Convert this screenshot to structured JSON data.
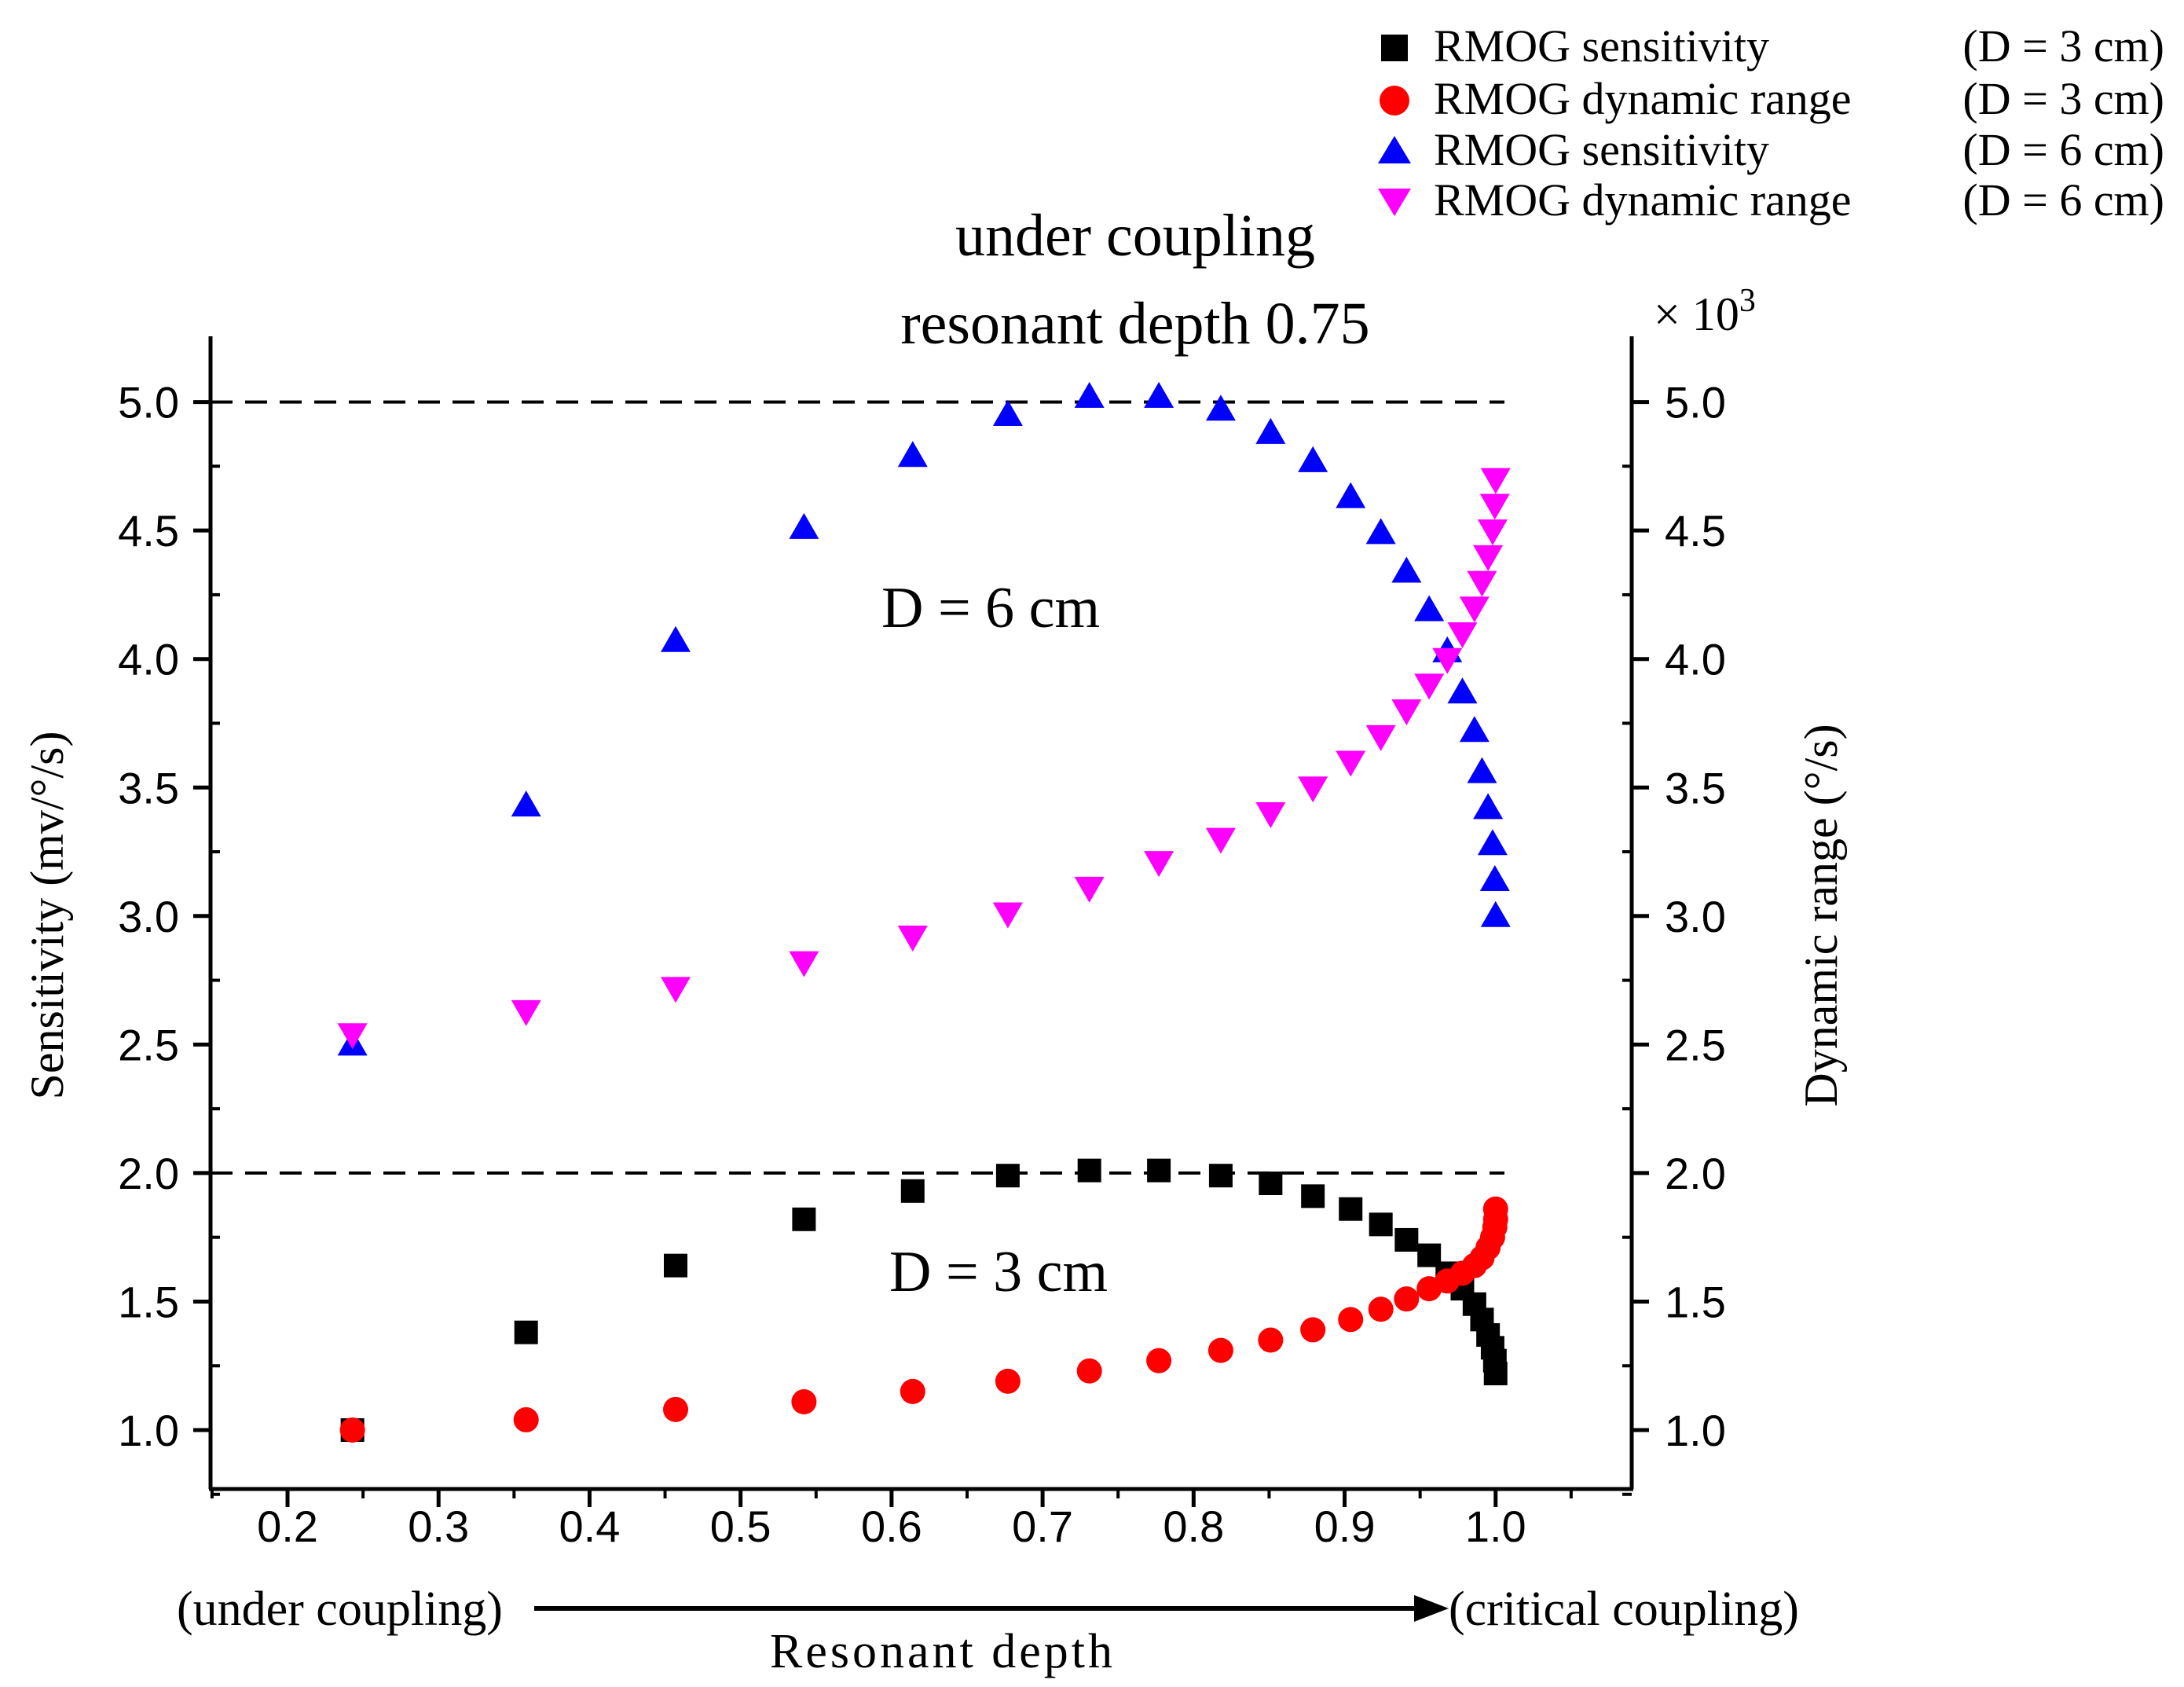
{
  "chart_data": {
    "type": "scatter",
    "title_lines": [
      "under coupling",
      "resonant depth 0.75"
    ],
    "xlabel": "Resonant depth",
    "xlabel_left": "(under coupling)",
    "xlabel_right": "(critical coupling)",
    "ylabel_left": "Sensitivity (mv/°/s)",
    "ylabel_right": "Dynamic range (°/s)",
    "right_multiplier_prefix": "× 10",
    "right_multiplier_exp": "3",
    "xlim": [
      0.15,
      1.1
    ],
    "ylim": [
      0.75,
      5.2
    ],
    "x_ticks": [
      "0.2",
      "0.3",
      "0.4",
      "0.5",
      "0.6",
      "0.7",
      "0.8",
      "0.9",
      "1.0"
    ],
    "y_ticks": [
      "1.0",
      "1.5",
      "2.0",
      "2.5",
      "3.0",
      "3.5",
      "4.0",
      "4.5",
      "5.0"
    ],
    "reference_lines": [
      5.0,
      2.0
    ],
    "annotations": [
      "D = 6 cm",
      "D = 3 cm"
    ],
    "legend": [
      {
        "label": "RMOG sensitivity",
        "cond": "(D = 3 cm)",
        "marker": "square",
        "color": "#000000"
      },
      {
        "label": "RMOG dynamic range",
        "cond": "(D = 3 cm)",
        "marker": "circle",
        "color": "#ff0000"
      },
      {
        "label": "RMOG sensitivity",
        "cond": "(D = 6 cm)",
        "marker": "triangle-up",
        "color": "#0000ff"
      },
      {
        "label": "RMOG dynamic range",
        "cond": "(D = 6 cm)",
        "marker": "triangle-down",
        "color": "#ff00ff"
      }
    ],
    "series": [
      {
        "name": "RMOG sensitivity (D = 3 cm)",
        "marker": "square",
        "color": "#000000",
        "points": [
          [
            0.243,
            1.0
          ],
          [
            0.358,
            1.38
          ],
          [
            0.457,
            1.64
          ],
          [
            0.542,
            1.82
          ],
          [
            0.614,
            1.93
          ],
          [
            0.677,
            1.99
          ],
          [
            0.731,
            2.01
          ],
          [
            0.777,
            2.01
          ],
          [
            0.818,
            1.99
          ],
          [
            0.851,
            1.96
          ],
          [
            0.879,
            1.91
          ],
          [
            0.904,
            1.86
          ],
          [
            0.924,
            1.8
          ],
          [
            0.941,
            1.74
          ],
          [
            0.956,
            1.68
          ],
          [
            0.968,
            1.61
          ],
          [
            0.978,
            1.55
          ],
          [
            0.986,
            1.49
          ],
          [
            0.991,
            1.43
          ],
          [
            0.995,
            1.37
          ],
          [
            0.998,
            1.32
          ],
          [
            0.9995,
            1.27
          ],
          [
            1.0,
            1.22
          ]
        ]
      },
      {
        "name": "RMOG dynamic range (D = 3 cm)",
        "marker": "circle",
        "color": "#ff0000",
        "points": [
          [
            0.243,
            1.0
          ],
          [
            0.358,
            1.04
          ],
          [
            0.457,
            1.08
          ],
          [
            0.542,
            1.11
          ],
          [
            0.614,
            1.15
          ],
          [
            0.677,
            1.19
          ],
          [
            0.731,
            1.23
          ],
          [
            0.777,
            1.27
          ],
          [
            0.818,
            1.31
          ],
          [
            0.851,
            1.35
          ],
          [
            0.879,
            1.39
          ],
          [
            0.904,
            1.43
          ],
          [
            0.924,
            1.47
          ],
          [
            0.941,
            1.51
          ],
          [
            0.956,
            1.55
          ],
          [
            0.968,
            1.58
          ],
          [
            0.978,
            1.61
          ],
          [
            0.986,
            1.64
          ],
          [
            0.991,
            1.67
          ],
          [
            0.995,
            1.71
          ],
          [
            0.998,
            1.75
          ],
          [
            0.9995,
            1.79
          ],
          [
            1.0,
            1.82
          ],
          [
            1.0,
            1.86
          ]
        ]
      },
      {
        "name": "RMOG sensitivity (D = 6 cm)",
        "marker": "triangle-up",
        "color": "#0000ff",
        "points": [
          [
            0.243,
            2.5
          ],
          [
            0.358,
            3.43
          ],
          [
            0.457,
            4.07
          ],
          [
            0.542,
            4.51
          ],
          [
            0.614,
            4.79
          ],
          [
            0.677,
            4.95
          ],
          [
            0.731,
            5.02
          ],
          [
            0.777,
            5.02
          ],
          [
            0.818,
            4.97
          ],
          [
            0.851,
            4.88
          ],
          [
            0.879,
            4.77
          ],
          [
            0.904,
            4.63
          ],
          [
            0.924,
            4.49
          ],
          [
            0.941,
            4.34
          ],
          [
            0.956,
            4.19
          ],
          [
            0.968,
            4.03
          ],
          [
            0.978,
            3.87
          ],
          [
            0.986,
            3.72
          ],
          [
            0.991,
            3.56
          ],
          [
            0.995,
            3.42
          ],
          [
            0.998,
            3.28
          ],
          [
            0.9995,
            3.14
          ],
          [
            1.0,
            3.0
          ]
        ]
      },
      {
        "name": "RMOG dynamic range (D = 6 cm)",
        "marker": "triangle-down",
        "color": "#ff00ff",
        "points": [
          [
            0.243,
            2.54
          ],
          [
            0.358,
            2.63
          ],
          [
            0.457,
            2.72
          ],
          [
            0.542,
            2.82
          ],
          [
            0.614,
            2.92
          ],
          [
            0.677,
            3.01
          ],
          [
            0.731,
            3.11
          ],
          [
            0.777,
            3.21
          ],
          [
            0.818,
            3.3
          ],
          [
            0.851,
            3.4
          ],
          [
            0.879,
            3.5
          ],
          [
            0.904,
            3.6
          ],
          [
            0.924,
            3.7
          ],
          [
            0.941,
            3.8
          ],
          [
            0.956,
            3.9
          ],
          [
            0.968,
            4.0
          ],
          [
            0.978,
            4.1
          ],
          [
            0.986,
            4.2
          ],
          [
            0.991,
            4.3
          ],
          [
            0.995,
            4.4
          ],
          [
            0.998,
            4.5
          ],
          [
            0.9995,
            4.6
          ],
          [
            1.0,
            4.7
          ]
        ]
      }
    ]
  }
}
